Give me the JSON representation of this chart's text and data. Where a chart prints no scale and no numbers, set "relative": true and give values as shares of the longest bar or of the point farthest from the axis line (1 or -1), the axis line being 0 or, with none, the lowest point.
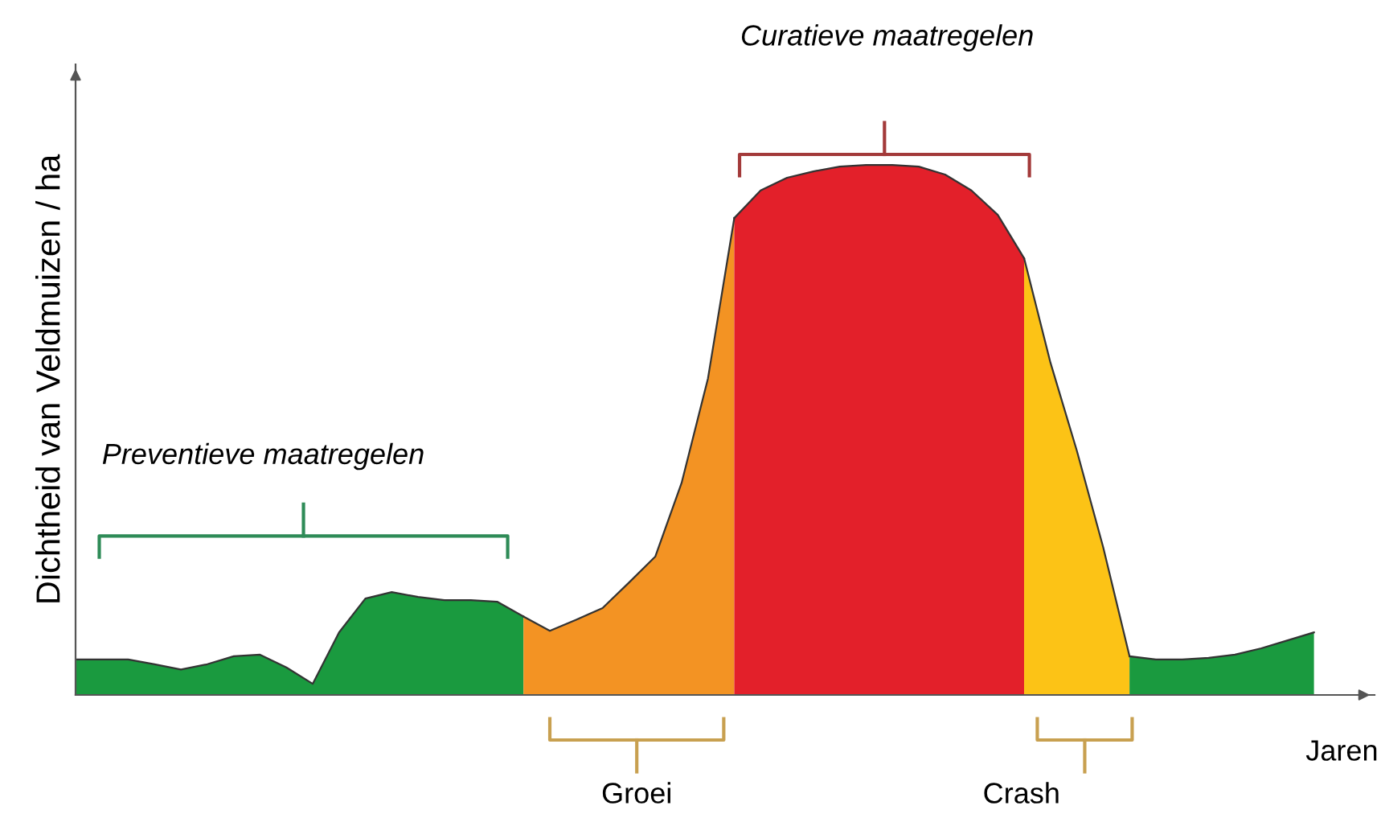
{
  "chart_data": {
    "type": "area",
    "relative": true,
    "xlabel": "Jaren",
    "ylabel": "Dichtheid van Veldmuizen / ha",
    "categories": [
      null,
      null,
      null,
      null,
      null,
      null,
      null,
      null,
      null,
      null,
      null,
      null,
      null,
      null,
      null,
      null,
      null,
      null,
      null,
      null,
      null,
      null,
      null,
      null,
      null,
      null,
      null,
      null,
      null,
      null,
      null,
      null,
      null,
      null,
      null,
      null,
      null,
      null,
      null,
      null,
      null,
      null,
      null,
      null,
      null,
      null,
      null,
      null
    ],
    "series": [
      {
        "color": "#1a9a3f",
        "values": [
          0.067,
          0.067,
          0.067,
          0.058,
          0.048,
          0.058,
          0.073,
          0.076,
          0.052,
          0.021,
          0.118,
          0.182,
          0.194,
          0.185,
          0.179,
          0.179,
          0.176,
          0.148,
          null,
          null,
          null,
          null,
          null,
          null,
          null,
          null,
          null,
          null,
          null,
          null,
          null,
          null,
          null,
          null,
          null,
          null,
          null,
          null,
          null,
          null,
          null,
          null,
          null,
          null,
          null,
          null,
          null,
          null
        ]
      },
      {
        "color": "#f39323",
        "values": [
          null,
          null,
          null,
          null,
          null,
          null,
          null,
          null,
          null,
          null,
          null,
          null,
          null,
          null,
          null,
          null,
          null,
          0.148,
          0.121,
          0.142,
          0.164,
          0.212,
          0.261,
          0.4,
          0.597,
          0.9,
          null,
          null,
          null,
          null,
          null,
          null,
          null,
          null,
          null,
          null,
          null,
          null,
          null,
          null,
          null,
          null,
          null,
          null,
          null,
          null,
          null,
          null
        ]
      },
      {
        "color": "#e3202a",
        "values": [
          null,
          null,
          null,
          null,
          null,
          null,
          null,
          null,
          null,
          null,
          null,
          null,
          null,
          null,
          null,
          null,
          null,
          null,
          null,
          null,
          null,
          null,
          null,
          null,
          null,
          0.9,
          0.952,
          0.976,
          0.988,
          0.997,
          1.0,
          1.0,
          0.997,
          0.982,
          0.952,
          0.906,
          0.824,
          null,
          null,
          null,
          null,
          null,
          null,
          null,
          null,
          null,
          null,
          null
        ]
      },
      {
        "color": "#fcc316",
        "values": [
          null,
          null,
          null,
          null,
          null,
          null,
          null,
          null,
          null,
          null,
          null,
          null,
          null,
          null,
          null,
          null,
          null,
          null,
          null,
          null,
          null,
          null,
          null,
          null,
          null,
          null,
          null,
          null,
          null,
          null,
          null,
          null,
          null,
          null,
          null,
          null,
          0.824,
          0.627,
          0.461,
          0.279,
          0.073,
          null,
          null,
          null,
          null,
          null,
          null,
          null
        ]
      },
      {
        "color": "#1a9a3f",
        "values": [
          null,
          null,
          null,
          null,
          null,
          null,
          null,
          null,
          null,
          null,
          null,
          null,
          null,
          null,
          null,
          null,
          null,
          null,
          null,
          null,
          null,
          null,
          null,
          null,
          null,
          null,
          null,
          null,
          null,
          null,
          null,
          null,
          null,
          null,
          null,
          null,
          null,
          null,
          null,
          null,
          0.073,
          0.067,
          0.067,
          0.07,
          0.076,
          0.088,
          0.103,
          0.118
        ]
      }
    ],
    "annotations": [
      "Preventieve maatregelen",
      "Curatieve maatregelen",
      "Groei",
      "Crash"
    ],
    "legend": false
  }
}
